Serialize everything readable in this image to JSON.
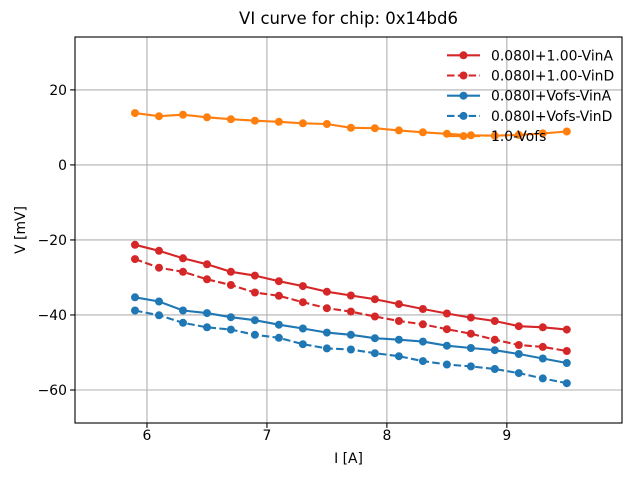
{
  "chart_data": {
    "type": "line",
    "title": "VI curve for chip: 0x14bd6",
    "xlabel": "I [A]",
    "ylabel": "V [mV]",
    "xlim": [
      5.4,
      9.96
    ],
    "ylim": [
      -68.8,
      34.1
    ],
    "xticks": [
      6,
      7,
      8,
      9
    ],
    "yticks": [
      20,
      0,
      -20,
      -40,
      -60
    ],
    "grid": true,
    "grid_color": "#b0b0b0",
    "spine_color": "#000000",
    "legend_position": "upper right",
    "legend_frame": false,
    "x": [
      5.9,
      6.1,
      6.3,
      6.5,
      6.7,
      6.9,
      7.1,
      7.3,
      7.5,
      7.7,
      7.9,
      8.1,
      8.3,
      8.5,
      8.7,
      8.9,
      9.1,
      9.3,
      9.5
    ],
    "series": [
      {
        "name": "0.080I+1.00-VinA",
        "color": "#d62728",
        "style": "solid",
        "marker": "circle",
        "values": [
          -21.3,
          -22.9,
          -24.9,
          -26.5,
          -28.5,
          -29.5,
          -31.0,
          -32.3,
          -33.8,
          -34.8,
          -35.8,
          -37.1,
          -38.4,
          -39.6,
          -40.7,
          -41.6,
          -43.0,
          -43.3,
          -43.9
        ]
      },
      {
        "name": "0.080I+1.00-VinD",
        "color": "#d62728",
        "style": "dashed",
        "marker": "circle",
        "values": [
          -25.1,
          -27.4,
          -28.5,
          -30.5,
          -32.0,
          -34.0,
          -34.9,
          -36.6,
          -38.2,
          -39.1,
          -40.4,
          -41.6,
          -42.5,
          -43.8,
          -45.0,
          -46.6,
          -48.0,
          -48.5,
          -49.6
        ]
      },
      {
        "name": "0.080I+Vofs-VinA",
        "color": "#1f77b4",
        "style": "solid",
        "marker": "circle",
        "values": [
          -35.3,
          -36.4,
          -38.8,
          -39.5,
          -40.6,
          -41.4,
          -42.6,
          -43.6,
          -44.7,
          -45.3,
          -46.2,
          -46.6,
          -47.1,
          -48.2,
          -48.8,
          -49.4,
          -50.4,
          -51.6,
          -52.8
        ]
      },
      {
        "name": "0.080I+Vofs-VinD",
        "color": "#1f77b4",
        "style": "dashed",
        "marker": "circle",
        "values": [
          -38.8,
          -40.1,
          -42.1,
          -43.3,
          -43.9,
          -45.3,
          -46.1,
          -47.8,
          -48.9,
          -49.2,
          -50.2,
          -51.0,
          -52.3,
          -53.2,
          -53.7,
          -54.4,
          -55.5,
          -56.9,
          -58.2
        ]
      },
      {
        "name": "1.0-Vofs",
        "color": "#ff7f0e",
        "style": "solid",
        "marker": "circle",
        "values": [
          13.8,
          13.0,
          13.4,
          12.7,
          12.2,
          11.8,
          11.5,
          11.1,
          10.9,
          9.9,
          9.8,
          9.2,
          8.7,
          8.3,
          7.9,
          7.8,
          8.0,
          8.4,
          8.9
        ]
      }
    ]
  }
}
